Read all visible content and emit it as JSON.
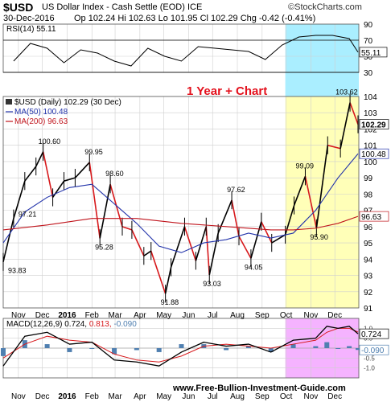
{
  "header": {
    "symbol": "$USD",
    "name": "US Dollar Index - Cash Settle (EOD)  ICE",
    "date": "30-Dec-2016",
    "quote": "Op 102.24  Hi 102.63  Lo 101.95  Cl 102.29  Chg -0.42 (-0.41%)",
    "brand": "©StockCharts.com"
  },
  "colors": {
    "price_up": "#000000",
    "price_down": "#d7191c",
    "ma50": "#2233aa",
    "ma200": "#c0141c",
    "highlight_rsi": "#aaeeff",
    "highlight_price": "#ffffb8",
    "highlight_macd": "#f5b3ff",
    "annotation": "#e3101c",
    "macd_hist": "#4f7fb0"
  },
  "annotation": "1 Year + Chart",
  "watermark": "www.Free-Bullion-Investment-Guide.com",
  "chart_data": [
    {
      "type": "line",
      "panel": "rsi",
      "legend": "RSI(14) 55.11",
      "last_value_label": "55.11",
      "ylim": [
        30,
        90
      ],
      "yticks": [
        "90",
        "70",
        "50",
        "30"
      ],
      "overbought": 70,
      "oversold": 30,
      "x": [
        "2015-10-26",
        "2015-11-16",
        "2015-12-07",
        "2015-12-28",
        "2016-01-18",
        "2016-02-08",
        "2016-02-29",
        "2016-03-21",
        "2016-04-11",
        "2016-05-02",
        "2016-05-23",
        "2016-06-13",
        "2016-07-04",
        "2016-07-25",
        "2016-08-15",
        "2016-09-05",
        "2016-09-26",
        "2016-10-17",
        "2016-11-07",
        "2016-11-28",
        "2016-12-19",
        "2016-12-30"
      ],
      "values": [
        44,
        66,
        60,
        42,
        58,
        54,
        44,
        38,
        60,
        50,
        44,
        62,
        60,
        58,
        56,
        46,
        64,
        74,
        76,
        76,
        72,
        55.11
      ]
    },
    {
      "type": "line",
      "panel": "price",
      "legend": "$USD (Daily) 102.29 (30 Dec)",
      "ylim": [
        91,
        104
      ],
      "yticks": [
        "104",
        "103",
        "102",
        "101",
        "100",
        "99",
        "98",
        "97",
        "96",
        "95",
        "94",
        "93",
        "92",
        "91"
      ],
      "series": [
        {
          "name": "$USD (Daily) 102.29 (30 Dec)",
          "x": [
            "2015-10-13",
            "2015-10-26",
            "2015-11-09",
            "2015-11-23",
            "2015-12-02",
            "2015-12-14",
            "2015-12-28",
            "2016-01-11",
            "2016-01-29",
            "2016-02-11",
            "2016-02-24",
            "2016-03-10",
            "2016-03-22",
            "2016-04-06",
            "2016-04-15",
            "2016-05-03",
            "2016-05-10",
            "2016-05-27",
            "2016-06-10",
            "2016-06-23",
            "2016-06-27",
            "2016-07-08",
            "2016-07-25",
            "2016-08-03",
            "2016-08-18",
            "2016-08-31",
            "2016-09-13",
            "2016-09-30",
            "2016-10-11",
            "2016-10-25",
            "2016-11-08",
            "2016-11-22",
            "2016-12-08",
            "2016-12-20",
            "2016-12-30"
          ],
          "values": [
            93.83,
            96.5,
            98.8,
            99.7,
            100.6,
            97.8,
            98.8,
            99.0,
            99.95,
            95.28,
            98.6,
            96.0,
            95.8,
            94.2,
            94.5,
            91.88,
            93.5,
            96.0,
            93.9,
            96.0,
            93.03,
            95.6,
            97.62,
            95.4,
            94.05,
            96.3,
            95.0,
            95.5,
            97.3,
            99.09,
            95.9,
            101.0,
            100.8,
            103.62,
            102.29
          ]
        },
        {
          "name": "MA(50) 100.48",
          "x": [
            "2015-10-13",
            "2015-11-09",
            "2015-12-07",
            "2016-01-04",
            "2016-02-01",
            "2016-02-29",
            "2016-03-28",
            "2016-04-25",
            "2016-05-23",
            "2016-06-20",
            "2016-07-18",
            "2016-08-15",
            "2016-09-12",
            "2016-10-10",
            "2016-11-07",
            "2016-12-05",
            "2016-12-30"
          ],
          "values": [
            95.0,
            96.9,
            97.8,
            98.4,
            98.6,
            97.4,
            96.2,
            94.8,
            94.4,
            95.0,
            95.2,
            95.6,
            95.3,
            95.6,
            97.0,
            99.0,
            100.48
          ]
        },
        {
          "name": "MA(200) 96.63",
          "x": [
            "2015-10-13",
            "2015-12-07",
            "2016-02-01",
            "2016-03-28",
            "2016-05-23",
            "2016-07-18",
            "2016-09-12",
            "2016-10-10",
            "2016-11-07",
            "2016-12-05",
            "2016-12-30"
          ],
          "values": [
            95.8,
            96.1,
            96.5,
            96.5,
            96.2,
            96.0,
            95.8,
            95.8,
            95.9,
            96.2,
            96.63
          ]
        }
      ],
      "last_value_labels": [
        "102.29",
        "100.48",
        "96.63"
      ],
      "annotations": [
        "93.83",
        "100.60",
        "97.21",
        "99.95",
        "95.28",
        "98.60",
        "91.88",
        "93.03",
        "97.62",
        "94.05",
        "99.09",
        "95.90",
        "103.62"
      ]
    },
    {
      "type": "line",
      "panel": "macd",
      "legend": "MACD(12,26,9)",
      "legend_values": [
        "0.724",
        "0.813",
        "-0.090"
      ],
      "last_value_labels": [
        "0.724",
        "-0.090"
      ],
      "ylim": [
        -1.5,
        1.5
      ],
      "yticks": [
        "1.0",
        "0.5",
        "0.0",
        "-0.5",
        "-1.0"
      ],
      "x": [
        "2015-10-13",
        "2015-11-09",
        "2015-12-07",
        "2016-01-04",
        "2016-02-01",
        "2016-02-29",
        "2016-03-28",
        "2016-04-25",
        "2016-05-23",
        "2016-06-20",
        "2016-07-18",
        "2016-08-15",
        "2016-09-12",
        "2016-10-10",
        "2016-11-07",
        "2016-11-21",
        "2016-12-05",
        "2016-12-19",
        "2016-12-30"
      ],
      "series": [
        {
          "name": "MACD(12,26,9)",
          "values": [
            -0.9,
            0.6,
            0.8,
            0.2,
            0.3,
            -0.6,
            -0.7,
            -0.9,
            -0.2,
            0.3,
            0.1,
            0.2,
            -0.2,
            0.4,
            0.5,
            1.1,
            1.0,
            1.1,
            0.724
          ]
        },
        {
          "name": "signal",
          "values": [
            -0.5,
            0.2,
            0.6,
            0.4,
            0.3,
            -0.3,
            -0.6,
            -0.7,
            -0.4,
            0.1,
            0.2,
            0.1,
            0.0,
            0.2,
            0.4,
            0.8,
            1.0,
            1.0,
            0.813
          ]
        },
        {
          "name": "histogram",
          "values": [
            -0.4,
            0.4,
            0.2,
            -0.2,
            0.0,
            -0.3,
            -0.1,
            -0.2,
            0.2,
            0.2,
            -0.1,
            0.1,
            -0.2,
            0.2,
            0.1,
            0.3,
            0.0,
            0.1,
            -0.09
          ]
        }
      ]
    }
  ],
  "x_axis": {
    "ticks": [
      {
        "date": "2015-11-01",
        "label": "Nov"
      },
      {
        "date": "2015-12-01",
        "label": "Dec"
      },
      {
        "date": "2016-01-01",
        "label": "2016"
      },
      {
        "date": "2016-02-01",
        "label": "Feb"
      },
      {
        "date": "2016-03-01",
        "label": "Mar"
      },
      {
        "date": "2016-04-01",
        "label": "Apr"
      },
      {
        "date": "2016-05-01",
        "label": "May"
      },
      {
        "date": "2016-06-01",
        "label": "Jun"
      },
      {
        "date": "2016-07-01",
        "label": "Jul"
      },
      {
        "date": "2016-08-01",
        "label": "Aug"
      },
      {
        "date": "2016-09-01",
        "label": "Sep"
      },
      {
        "date": "2016-10-01",
        "label": "Oct"
      },
      {
        "date": "2016-11-01",
        "label": "Nov"
      },
      {
        "date": "2016-12-01",
        "label": "Dec"
      }
    ]
  }
}
